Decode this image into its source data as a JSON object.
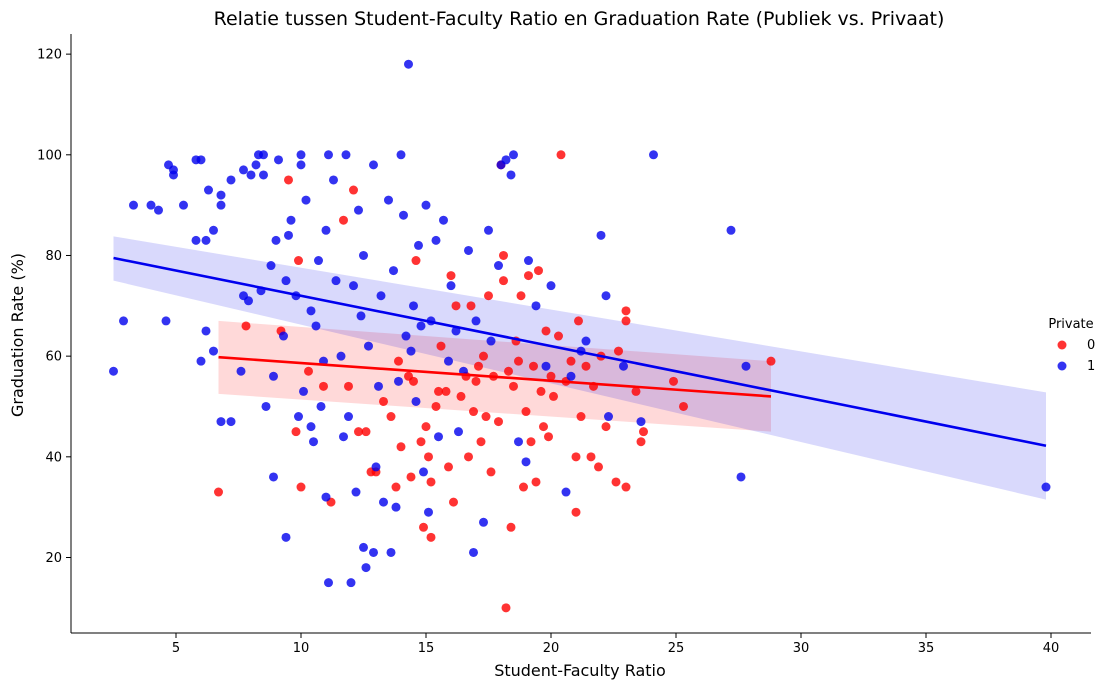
{
  "chart_data": {
    "type": "scatter",
    "title": "Relatie tussen Student-Faculty Ratio en Graduation Rate (Publiek vs. Privaat)",
    "xlabel": "Student-Faculty Ratio",
    "ylabel": "Graduation Rate (%)",
    "xlim": [
      0.8,
      41.6
    ],
    "ylim": [
      5,
      124
    ],
    "xticks": [
      5,
      10,
      15,
      20,
      25,
      30,
      35,
      40
    ],
    "yticks": [
      20,
      40,
      60,
      80,
      100,
      120
    ],
    "grid": false,
    "legend": {
      "title": "Private",
      "placement": "center-right",
      "entries": [
        "0",
        "1"
      ]
    },
    "colors": {
      "0": "#ff0000",
      "1": "#0000ee"
    },
    "series": [
      {
        "name": "0",
        "color": "#ff0000",
        "points": [
          [
            6.7,
            33
          ],
          [
            7.8,
            66
          ],
          [
            9.2,
            65
          ],
          [
            9.5,
            95
          ],
          [
            9.8,
            45
          ],
          [
            9.9,
            79
          ],
          [
            10.0,
            34
          ],
          [
            10.3,
            57
          ],
          [
            10.9,
            54
          ],
          [
            11.2,
            31
          ],
          [
            11.7,
            87
          ],
          [
            11.9,
            54
          ],
          [
            12.1,
            93
          ],
          [
            12.3,
            45
          ],
          [
            12.6,
            45
          ],
          [
            12.8,
            37
          ],
          [
            13.0,
            37
          ],
          [
            13.3,
            51
          ],
          [
            13.6,
            48
          ],
          [
            13.8,
            34
          ],
          [
            13.9,
            59
          ],
          [
            14.0,
            42
          ],
          [
            14.3,
            56
          ],
          [
            14.4,
            36
          ],
          [
            14.5,
            55
          ],
          [
            14.6,
            79
          ],
          [
            14.8,
            43
          ],
          [
            14.9,
            26
          ],
          [
            15.0,
            46
          ],
          [
            15.1,
            40
          ],
          [
            15.2,
            24
          ],
          [
            15.2,
            35
          ],
          [
            15.4,
            50
          ],
          [
            15.5,
            53
          ],
          [
            15.6,
            62
          ],
          [
            15.8,
            53
          ],
          [
            15.9,
            38
          ],
          [
            16.0,
            76
          ],
          [
            16.1,
            31
          ],
          [
            16.2,
            70
          ],
          [
            16.4,
            52
          ],
          [
            16.6,
            56
          ],
          [
            16.7,
            40
          ],
          [
            16.8,
            70
          ],
          [
            16.9,
            49
          ],
          [
            17.0,
            55
          ],
          [
            17.1,
            58
          ],
          [
            17.2,
            43
          ],
          [
            17.3,
            60
          ],
          [
            17.4,
            48
          ],
          [
            17.5,
            72
          ],
          [
            17.6,
            37
          ],
          [
            17.7,
            56
          ],
          [
            17.9,
            47
          ],
          [
            18.0,
            98
          ],
          [
            18.1,
            80
          ],
          [
            18.1,
            75
          ],
          [
            18.2,
            10
          ],
          [
            18.3,
            57
          ],
          [
            18.4,
            26
          ],
          [
            18.5,
            54
          ],
          [
            18.6,
            63
          ],
          [
            18.7,
            59
          ],
          [
            18.8,
            72
          ],
          [
            18.9,
            34
          ],
          [
            19.0,
            49
          ],
          [
            19.1,
            76
          ],
          [
            19.2,
            43
          ],
          [
            19.3,
            58
          ],
          [
            19.4,
            35
          ],
          [
            19.5,
            77
          ],
          [
            19.6,
            53
          ],
          [
            19.7,
            46
          ],
          [
            19.8,
            65
          ],
          [
            19.9,
            44
          ],
          [
            20.0,
            56
          ],
          [
            20.1,
            52
          ],
          [
            20.3,
            64
          ],
          [
            20.4,
            100
          ],
          [
            20.6,
            55
          ],
          [
            20.8,
            59
          ],
          [
            21.0,
            40
          ],
          [
            21.0,
            29
          ],
          [
            21.1,
            67
          ],
          [
            21.2,
            48
          ],
          [
            21.4,
            58
          ],
          [
            21.6,
            40
          ],
          [
            21.7,
            54
          ],
          [
            21.9,
            38
          ],
          [
            22.0,
            60
          ],
          [
            22.2,
            46
          ],
          [
            22.6,
            35
          ],
          [
            22.7,
            61
          ],
          [
            23.0,
            34
          ],
          [
            23.0,
            67
          ],
          [
            23.0,
            69
          ],
          [
            23.4,
            53
          ],
          [
            23.6,
            43
          ],
          [
            23.7,
            45
          ],
          [
            24.9,
            55
          ],
          [
            25.3,
            50
          ],
          [
            28.8,
            59
          ]
        ],
        "regression": {
          "x": [
            6.7,
            28.8
          ],
          "y": [
            59.8,
            52.0
          ],
          "ci_low": [
            52.5,
            45.0
          ],
          "ci_high": [
            67.0,
            59.0
          ]
        }
      },
      {
        "name": "1",
        "color": "#0000ee",
        "points": [
          [
            2.5,
            57
          ],
          [
            2.9,
            67
          ],
          [
            3.3,
            90
          ],
          [
            4.0,
            90
          ],
          [
            4.3,
            89
          ],
          [
            4.6,
            67
          ],
          [
            4.7,
            98
          ],
          [
            4.9,
            96
          ],
          [
            4.9,
            97
          ],
          [
            5.3,
            90
          ],
          [
            5.8,
            83
          ],
          [
            5.8,
            99
          ],
          [
            6.0,
            99
          ],
          [
            6.0,
            59
          ],
          [
            6.2,
            65
          ],
          [
            6.2,
            83
          ],
          [
            6.3,
            93
          ],
          [
            6.5,
            61
          ],
          [
            6.5,
            85
          ],
          [
            6.8,
            90
          ],
          [
            6.8,
            92
          ],
          [
            6.8,
            47
          ],
          [
            7.2,
            95
          ],
          [
            7.2,
            47
          ],
          [
            7.6,
            57
          ],
          [
            7.7,
            72
          ],
          [
            7.7,
            97
          ],
          [
            7.9,
            71
          ],
          [
            8.0,
            96
          ],
          [
            8.2,
            98
          ],
          [
            8.3,
            100
          ],
          [
            8.4,
            73
          ],
          [
            8.5,
            96
          ],
          [
            8.5,
            100
          ],
          [
            8.6,
            50
          ],
          [
            8.8,
            78
          ],
          [
            8.9,
            36
          ],
          [
            8.9,
            56
          ],
          [
            9.0,
            83
          ],
          [
            9.1,
            99
          ],
          [
            9.3,
            64
          ],
          [
            9.4,
            75
          ],
          [
            9.4,
            24
          ],
          [
            9.5,
            84
          ],
          [
            9.6,
            87
          ],
          [
            9.8,
            72
          ],
          [
            9.9,
            48
          ],
          [
            10.0,
            98
          ],
          [
            10.0,
            100
          ],
          [
            10.1,
            53
          ],
          [
            10.2,
            91
          ],
          [
            10.4,
            69
          ],
          [
            10.4,
            46
          ],
          [
            10.5,
            43
          ],
          [
            10.6,
            66
          ],
          [
            10.7,
            79
          ],
          [
            10.8,
            50
          ],
          [
            10.9,
            59
          ],
          [
            11.0,
            85
          ],
          [
            11.0,
            32
          ],
          [
            11.1,
            15
          ],
          [
            11.1,
            100
          ],
          [
            11.3,
            95
          ],
          [
            11.4,
            75
          ],
          [
            11.6,
            60
          ],
          [
            11.7,
            44
          ],
          [
            11.8,
            100
          ],
          [
            11.9,
            48
          ],
          [
            12.0,
            15
          ],
          [
            12.1,
            74
          ],
          [
            12.2,
            33
          ],
          [
            12.3,
            89
          ],
          [
            12.4,
            68
          ],
          [
            12.5,
            80
          ],
          [
            12.5,
            22
          ],
          [
            12.6,
            18
          ],
          [
            12.7,
            62
          ],
          [
            12.9,
            21
          ],
          [
            12.9,
            98
          ],
          [
            13.0,
            38
          ],
          [
            13.1,
            54
          ],
          [
            13.2,
            72
          ],
          [
            13.3,
            31
          ],
          [
            13.5,
            91
          ],
          [
            13.6,
            21
          ],
          [
            13.7,
            77
          ],
          [
            13.8,
            30
          ],
          [
            13.9,
            55
          ],
          [
            14.0,
            100
          ],
          [
            14.1,
            88
          ],
          [
            14.2,
            64
          ],
          [
            14.3,
            118
          ],
          [
            14.4,
            61
          ],
          [
            14.5,
            70
          ],
          [
            14.6,
            51
          ],
          [
            14.7,
            82
          ],
          [
            14.8,
            66
          ],
          [
            14.9,
            37
          ],
          [
            15.0,
            90
          ],
          [
            15.1,
            29
          ],
          [
            15.2,
            67
          ],
          [
            15.4,
            83
          ],
          [
            15.5,
            44
          ],
          [
            15.7,
            87
          ],
          [
            15.9,
            59
          ],
          [
            16.0,
            74
          ],
          [
            16.2,
            65
          ],
          [
            16.3,
            45
          ],
          [
            16.5,
            57
          ],
          [
            16.7,
            81
          ],
          [
            16.9,
            21
          ],
          [
            17.0,
            67
          ],
          [
            17.3,
            27
          ],
          [
            17.5,
            85
          ],
          [
            17.6,
            63
          ],
          [
            17.9,
            78
          ],
          [
            18.0,
            98
          ],
          [
            18.2,
            99
          ],
          [
            18.4,
            96
          ],
          [
            18.5,
            100
          ],
          [
            18.7,
            43
          ],
          [
            19.0,
            39
          ],
          [
            19.1,
            79
          ],
          [
            19.4,
            70
          ],
          [
            19.8,
            58
          ],
          [
            20.0,
            74
          ],
          [
            20.6,
            33
          ],
          [
            20.8,
            56
          ],
          [
            21.2,
            61
          ],
          [
            21.4,
            63
          ],
          [
            22.0,
            84
          ],
          [
            22.2,
            72
          ],
          [
            22.3,
            48
          ],
          [
            22.9,
            58
          ],
          [
            23.6,
            47
          ],
          [
            24.1,
            100
          ],
          [
            27.2,
            85
          ],
          [
            27.6,
            36
          ],
          [
            27.8,
            58
          ],
          [
            39.8,
            34
          ]
        ],
        "regression": {
          "x": [
            2.5,
            39.8
          ],
          "y": [
            79.5,
            42.2
          ],
          "ci_low": [
            75.0,
            31.5
          ],
          "ci_high": [
            83.8,
            52.8
          ]
        }
      }
    ]
  }
}
